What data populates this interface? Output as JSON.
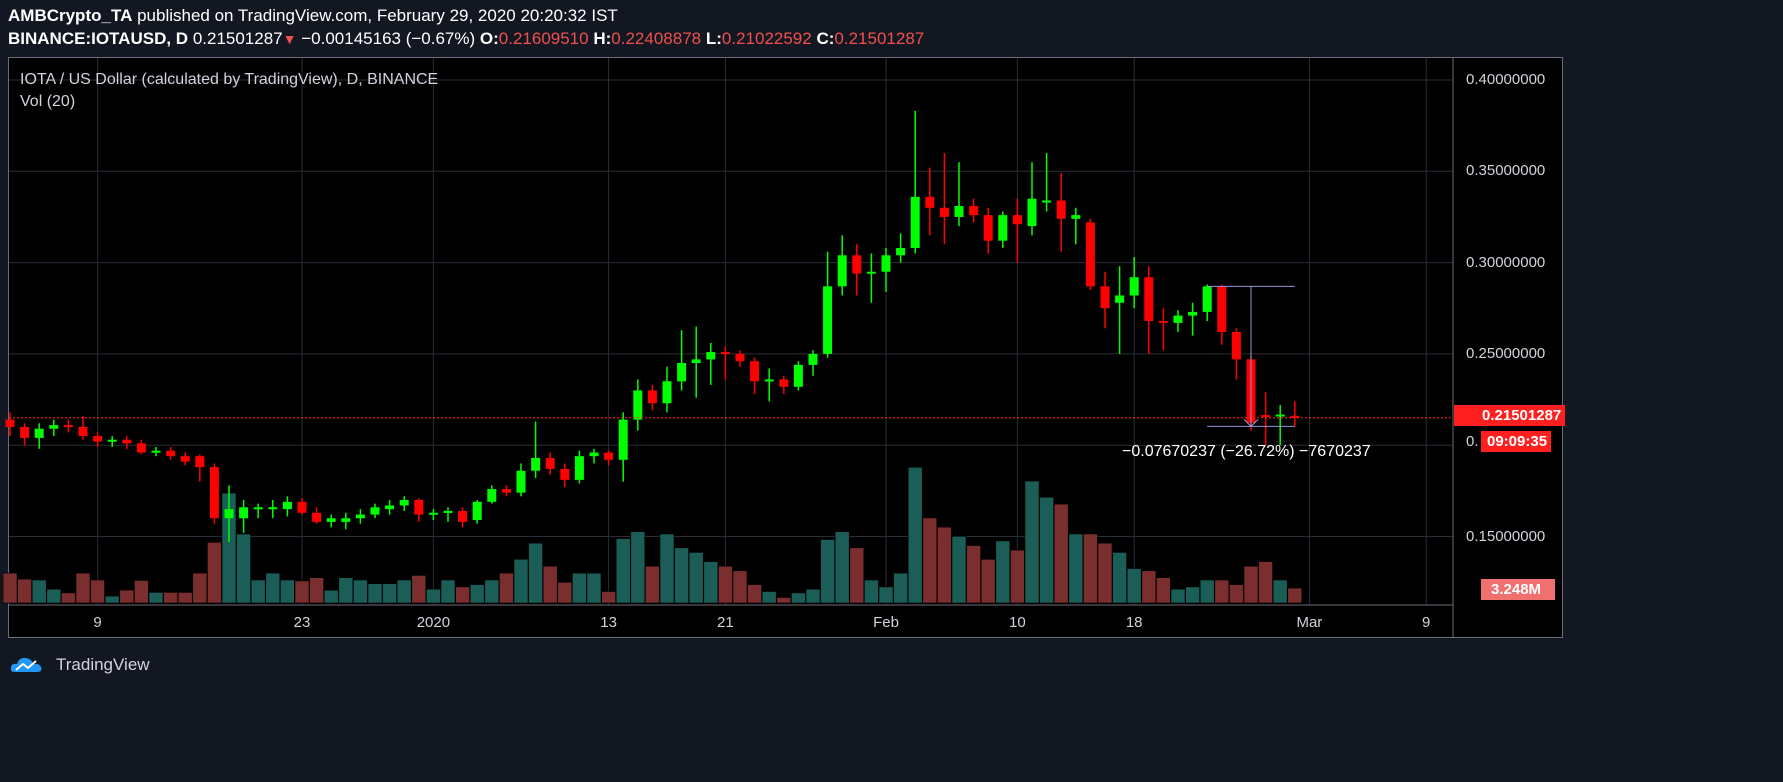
{
  "header": {
    "author": "AMBCrypto_TA",
    "published": "published on TradingView.com, February 29, 2020 20:20:32 IST",
    "symbol": "BINANCE:IOTAUSD, D",
    "last": "0.21501287",
    "change": "−0.00145163 (−0.67%)",
    "o_label": "O:",
    "o": "0.21609510",
    "h_label": "H:",
    "h": "0.22408878",
    "l_label": "L:",
    "l": "0.21022592",
    "c_label": "C:",
    "c": "0.21501287"
  },
  "legend": {
    "title": "IOTA / US Dollar (calculated by TradingView), D, BINANCE",
    "vol": "Vol (20)"
  },
  "badges": {
    "price": "0.21501287",
    "countdown": "09:09:35",
    "volume": "3.248M",
    "hidden_tick": "0."
  },
  "measure": {
    "label": "−0.07670237 (−26.72%) −7670237"
  },
  "footer": {
    "brand": "TradingView"
  },
  "colors": {
    "up": "#00ff00",
    "down": "#ff0000",
    "vol_up": "#1b5e57",
    "vol_down": "#7a2e2e",
    "bg": "#131722"
  },
  "chart_data": {
    "type": "candlestick",
    "title": "IOTA / US Dollar (calculated by TradingView), D, BINANCE",
    "start_date": "2019-12-03",
    "ylim": [
      0.11,
      0.41
    ],
    "y_ticks": [
      "0.40000000",
      "0.35000000",
      "0.30000000",
      "0.25000000",
      "0.15000000"
    ],
    "y_tick_values": [
      0.4,
      0.35,
      0.3,
      0.25,
      0.15
    ],
    "x_ticks": [
      {
        "label": "9",
        "index": 6
      },
      {
        "label": "23",
        "index": 20
      },
      {
        "label": "2020",
        "index": 29
      },
      {
        "label": "13",
        "index": 41
      },
      {
        "label": "21",
        "index": 49
      },
      {
        "label": "Feb",
        "index": 60
      },
      {
        "label": "10",
        "index": 69
      },
      {
        "label": "18",
        "index": 77
      },
      {
        "label": "Mar",
        "index": 89
      },
      {
        "label": "9",
        "index": 97
      }
    ],
    "last_price": 0.21501287,
    "volume_unit": "M",
    "candles_ohlcv": [
      [
        0.214,
        0.218,
        0.205,
        0.21,
        6.5
      ],
      [
        0.21,
        0.212,
        0.2,
        0.204,
        5.2
      ],
      [
        0.204,
        0.212,
        0.198,
        0.209,
        5.0
      ],
      [
        0.209,
        0.214,
        0.205,
        0.211,
        3.0
      ],
      [
        0.211,
        0.214,
        0.207,
        0.21,
        2.2
      ],
      [
        0.21,
        0.216,
        0.203,
        0.205,
        6.5
      ],
      [
        0.205,
        0.207,
        0.199,
        0.202,
        5.0
      ],
      [
        0.202,
        0.205,
        0.199,
        0.203,
        1.5
      ],
      [
        0.203,
        0.205,
        0.198,
        0.201,
        2.8
      ],
      [
        0.201,
        0.203,
        0.195,
        0.196,
        4.9
      ],
      [
        0.196,
        0.199,
        0.194,
        0.197,
        2.3
      ],
      [
        0.197,
        0.199,
        0.192,
        0.194,
        2.3
      ],
      [
        0.194,
        0.196,
        0.189,
        0.191,
        2.3
      ],
      [
        0.194,
        0.195,
        0.18,
        0.188,
        6.5
      ],
      [
        0.188,
        0.19,
        0.157,
        0.16,
        13.2
      ],
      [
        0.16,
        0.178,
        0.147,
        0.165,
        23.9
      ],
      [
        0.16,
        0.17,
        0.152,
        0.166,
        15.0
      ],
      [
        0.165,
        0.168,
        0.16,
        0.166,
        5.0
      ],
      [
        0.165,
        0.17,
        0.16,
        0.166,
        6.5
      ],
      [
        0.165,
        0.172,
        0.161,
        0.169,
        5.0
      ],
      [
        0.169,
        0.171,
        0.162,
        0.163,
        4.8
      ],
      [
        0.163,
        0.166,
        0.157,
        0.158,
        5.5
      ],
      [
        0.158,
        0.162,
        0.155,
        0.16,
        2.8
      ],
      [
        0.158,
        0.163,
        0.154,
        0.16,
        5.5
      ],
      [
        0.16,
        0.165,
        0.157,
        0.162,
        5.0
      ],
      [
        0.162,
        0.168,
        0.16,
        0.166,
        4.2
      ],
      [
        0.165,
        0.17,
        0.162,
        0.167,
        4.2
      ],
      [
        0.167,
        0.172,
        0.164,
        0.17,
        5.0
      ],
      [
        0.17,
        0.171,
        0.158,
        0.162,
        6.0
      ],
      [
        0.162,
        0.165,
        0.159,
        0.163,
        3.0
      ],
      [
        0.163,
        0.166,
        0.158,
        0.164,
        5.0
      ],
      [
        0.164,
        0.166,
        0.155,
        0.158,
        3.5
      ],
      [
        0.159,
        0.17,
        0.157,
        0.169,
        4.0
      ],
      [
        0.169,
        0.178,
        0.168,
        0.176,
        5.0
      ],
      [
        0.176,
        0.178,
        0.172,
        0.174,
        6.5
      ],
      [
        0.174,
        0.19,
        0.172,
        0.186,
        9.5
      ],
      [
        0.186,
        0.213,
        0.182,
        0.193,
        13.0
      ],
      [
        0.193,
        0.196,
        0.184,
        0.187,
        8.0
      ],
      [
        0.187,
        0.19,
        0.177,
        0.181,
        4.5
      ],
      [
        0.181,
        0.197,
        0.179,
        0.194,
        6.5
      ],
      [
        0.194,
        0.198,
        0.19,
        0.196,
        6.5
      ],
      [
        0.196,
        0.197,
        0.189,
        0.192,
        2.5
      ],
      [
        0.192,
        0.218,
        0.18,
        0.214,
        14.0
      ],
      [
        0.214,
        0.236,
        0.208,
        0.23,
        15.5
      ],
      [
        0.23,
        0.233,
        0.219,
        0.223,
        8.0
      ],
      [
        0.223,
        0.243,
        0.218,
        0.235,
        15.0
      ],
      [
        0.235,
        0.263,
        0.23,
        0.245,
        12.0
      ],
      [
        0.245,
        0.265,
        0.226,
        0.247,
        11.0
      ],
      [
        0.247,
        0.256,
        0.233,
        0.251,
        9.0
      ],
      [
        0.251,
        0.254,
        0.236,
        0.25,
        8.0
      ],
      [
        0.25,
        0.252,
        0.243,
        0.246,
        7.0
      ],
      [
        0.246,
        0.248,
        0.228,
        0.235,
        4.0
      ],
      [
        0.235,
        0.242,
        0.224,
        0.236,
        2.5
      ],
      [
        0.236,
        0.238,
        0.228,
        0.232,
        1.2
      ],
      [
        0.232,
        0.246,
        0.23,
        0.244,
        2.2
      ],
      [
        0.244,
        0.252,
        0.238,
        0.25,
        3.0
      ],
      [
        0.25,
        0.306,
        0.248,
        0.287,
        13.8
      ],
      [
        0.287,
        0.315,
        0.282,
        0.304,
        15.5
      ],
      [
        0.304,
        0.31,
        0.282,
        0.294,
        12.0
      ],
      [
        0.294,
        0.305,
        0.278,
        0.295,
        5.0
      ],
      [
        0.295,
        0.308,
        0.284,
        0.304,
        3.5
      ],
      [
        0.304,
        0.316,
        0.3,
        0.308,
        6.5
      ],
      [
        0.308,
        0.383,
        0.305,
        0.336,
        29.5
      ],
      [
        0.336,
        0.352,
        0.315,
        0.33,
        18.5
      ],
      [
        0.33,
        0.36,
        0.31,
        0.325,
        16.5
      ],
      [
        0.325,
        0.355,
        0.32,
        0.331,
        14.5
      ],
      [
        0.331,
        0.335,
        0.322,
        0.326,
        12.5
      ],
      [
        0.326,
        0.33,
        0.305,
        0.312,
        9.5
      ],
      [
        0.312,
        0.328,
        0.308,
        0.326,
        13.5
      ],
      [
        0.326,
        0.335,
        0.3,
        0.321,
        11.5
      ],
      [
        0.32,
        0.355,
        0.315,
        0.335,
        26.5
      ],
      [
        0.333,
        0.36,
        0.328,
        0.334,
        23.0
      ],
      [
        0.334,
        0.349,
        0.306,
        0.324,
        21.5
      ],
      [
        0.324,
        0.33,
        0.31,
        0.326,
        15.0
      ],
      [
        0.322,
        0.324,
        0.285,
        0.287,
        15.0
      ],
      [
        0.287,
        0.295,
        0.264,
        0.275,
        13.0
      ],
      [
        0.278,
        0.298,
        0.25,
        0.282,
        11.0
      ],
      [
        0.282,
        0.303,
        0.275,
        0.292,
        7.5
      ],
      [
        0.292,
        0.298,
        0.25,
        0.268,
        7.0
      ],
      [
        0.268,
        0.275,
        0.252,
        0.267,
        5.5
      ],
      [
        0.267,
        0.274,
        0.262,
        0.271,
        3.0
      ],
      [
        0.271,
        0.278,
        0.26,
        0.273,
        3.5
      ],
      [
        0.273,
        0.288,
        0.268,
        0.287,
        5.0
      ],
      [
        0.287,
        0.288,
        0.255,
        0.262,
        5.0
      ],
      [
        0.262,
        0.264,
        0.236,
        0.247,
        4.0
      ],
      [
        0.247,
        0.249,
        0.208,
        0.2122,
        8.0
      ],
      [
        0.2165,
        0.229,
        0.2,
        0.2163,
        9.0
      ],
      [
        0.216,
        0.222,
        0.2,
        0.2168,
        5.0
      ],
      [
        0.2160951,
        0.22408878,
        0.21022592,
        0.21501287,
        3.248
      ]
    ],
    "measurement": {
      "from_price": 0.287,
      "to_price": 0.2103,
      "from_index": 82,
      "to_index": 88,
      "pivot_index": 85
    }
  }
}
